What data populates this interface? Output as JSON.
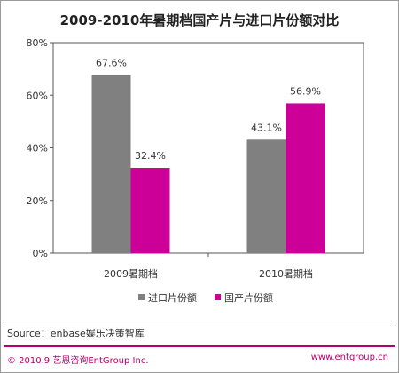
{
  "chart_data": {
    "type": "bar",
    "title": "2009-2010年暑期档国产片与进口片份额对比",
    "categories": [
      "2009暑期档",
      "2010暑期档"
    ],
    "series": [
      {
        "name": "进口片份额",
        "color": "#808080",
        "values": [
          67.6,
          43.1
        ],
        "labels": [
          "67.6%",
          "43.1%"
        ]
      },
      {
        "name": "国产片份额",
        "color": "#cc0099",
        "values": [
          32.4,
          56.9
        ],
        "labels": [
          "32.4%",
          "56.9%"
        ]
      }
    ],
    "ylim": [
      0,
      80
    ],
    "yticks": [
      "0%",
      "20%",
      "40%",
      "60%",
      "80%"
    ],
    "ytick_values": [
      0,
      20,
      40,
      60,
      80
    ],
    "grid": false,
    "legend_position": "bottom"
  },
  "source": "Source：enbase娱乐决策智库",
  "footer": {
    "copyright": "© 2010.9 艺恩咨询EntGroup Inc.",
    "website": "www.entgroup.cn"
  }
}
